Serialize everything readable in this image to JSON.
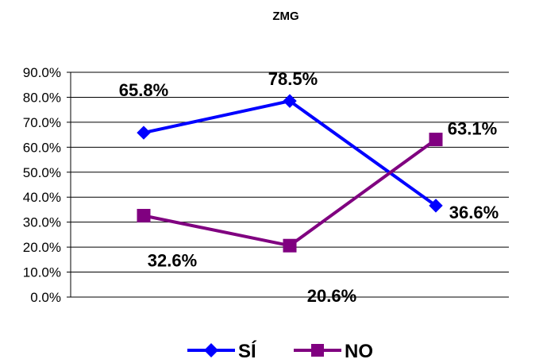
{
  "chart_data": {
    "type": "line",
    "title": "ZMG",
    "categories": [
      "",
      "",
      ""
    ],
    "ylim": [
      0,
      0.9
    ],
    "y_ticks": [
      0,
      0.1,
      0.2,
      0.3,
      0.4,
      0.5,
      0.6,
      0.7,
      0.8,
      0.9
    ],
    "y_tick_labels": [
      "0.0%",
      "10.0%",
      "20.0%",
      "30.0%",
      "40.0%",
      "50.0%",
      "60.0%",
      "70.0%",
      "80.0%",
      "90.0%"
    ],
    "grid": true,
    "legend_position": "bottom",
    "series": [
      {
        "name": "SÍ",
        "values": [
          0.658,
          0.785,
          0.366
        ],
        "labels": [
          "65.8%",
          "78.5%",
          "36.6%"
        ],
        "color": "#0000ff",
        "marker": "diamond"
      },
      {
        "name": "NO",
        "values": [
          0.326,
          0.206,
          0.631
        ],
        "labels": [
          "32.6%",
          "20.6%",
          "63.1%"
        ],
        "color": "#800080",
        "marker": "square"
      }
    ]
  }
}
